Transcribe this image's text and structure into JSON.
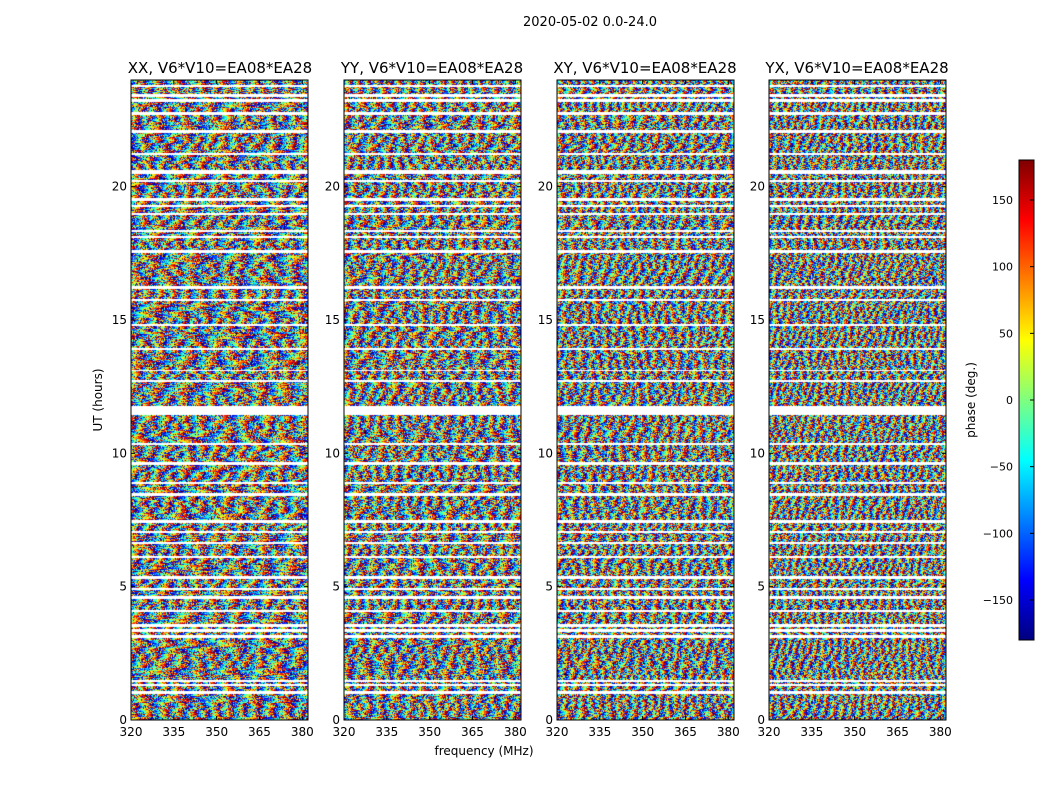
{
  "suptitle": "2020-05-02 0.0-24.0",
  "colors": {
    "jet": [
      "#00007f",
      "#0000ff",
      "#007fff",
      "#00ffff",
      "#7fff7f",
      "#ffff00",
      "#ff7f00",
      "#ff0000",
      "#7f0000"
    ],
    "flagged": "#ffffff",
    "axis": "#000000"
  },
  "chart_data": [
    {
      "type": "heatmap",
      "title": "XX, V6*V10=EA08*EA28",
      "xlabel": "",
      "ylabel": "UT (hours)",
      "xlim": [
        320,
        382
      ],
      "ylim": [
        0,
        24
      ],
      "xticks": [
        "320",
        "335",
        "350",
        "365",
        "380"
      ],
      "yticks": [
        "0",
        "5",
        "10",
        "15",
        "20"
      ]
    },
    {
      "type": "heatmap",
      "title": "YY, V6*V10=EA08*EA28",
      "xlabel": "frequency (MHz)",
      "ylabel": "",
      "xlim": [
        320,
        382
      ],
      "ylim": [
        0,
        24
      ],
      "xticks": [
        "320",
        "335",
        "350",
        "365",
        "380"
      ],
      "yticks": [
        "0",
        "5",
        "10",
        "15",
        "20"
      ]
    },
    {
      "type": "heatmap",
      "title": "XY, V6*V10=EA08*EA28",
      "xlabel": "",
      "ylabel": "",
      "xlim": [
        320,
        382
      ],
      "ylim": [
        0,
        24
      ],
      "xticks": [
        "320",
        "335",
        "350",
        "365",
        "380"
      ],
      "yticks": [
        "0",
        "5",
        "10",
        "15",
        "20"
      ]
    },
    {
      "type": "heatmap",
      "title": "YX, V6*V10=EA08*EA28",
      "xlabel": "",
      "ylabel": "",
      "xlim": [
        320,
        382
      ],
      "ylim": [
        0,
        24
      ],
      "xticks": [
        "320",
        "335",
        "350",
        "365",
        "380"
      ],
      "yticks": [
        "0",
        "5",
        "10",
        "15",
        "20"
      ]
    }
  ],
  "colorbar": {
    "label": "phase (deg.)",
    "range": [
      -180,
      180
    ],
    "ticks": [
      "150",
      "100",
      "50",
      "0",
      "−50",
      "−100",
      "−150"
    ],
    "tick_values": [
      150,
      100,
      50,
      0,
      -50,
      -100,
      -150
    ]
  },
  "flagged_ut_ranges": [
    [
      0.98,
      1.12
    ],
    [
      1.28,
      1.38
    ],
    [
      1.46,
      1.52
    ],
    [
      3.08,
      3.2
    ],
    [
      3.33,
      3.43
    ],
    [
      3.52,
      3.62
    ],
    [
      4.08,
      4.16
    ],
    [
      4.56,
      4.66
    ],
    [
      4.9,
      4.98
    ],
    [
      5.32,
      5.4
    ],
    [
      6.1,
      6.17
    ],
    [
      6.63,
      6.7
    ],
    [
      7.03,
      7.12
    ],
    [
      7.42,
      7.5
    ],
    [
      8.42,
      8.54
    ],
    [
      8.88,
      8.96
    ],
    [
      9.6,
      9.68
    ],
    [
      10.33,
      10.42
    ],
    [
      11.45,
      11.8
    ],
    [
      12.7,
      12.76
    ],
    [
      13.1,
      13.16
    ],
    [
      13.9,
      13.98
    ],
    [
      14.8,
      14.86
    ],
    [
      15.75,
      15.82
    ],
    [
      16.2,
      16.3
    ],
    [
      17.55,
      17.63
    ],
    [
      18.08,
      18.16
    ],
    [
      18.32,
      18.4
    ],
    [
      18.95,
      19.03
    ],
    [
      19.25,
      19.33
    ],
    [
      19.5,
      19.58
    ],
    [
      20.2,
      20.28
    ],
    [
      20.5,
      20.65
    ],
    [
      21.2,
      21.28
    ],
    [
      22.05,
      22.14
    ],
    [
      22.7,
      22.8
    ],
    [
      23.2,
      23.3
    ],
    [
      23.4,
      23.48
    ],
    [
      23.76,
      23.84
    ]
  ]
}
